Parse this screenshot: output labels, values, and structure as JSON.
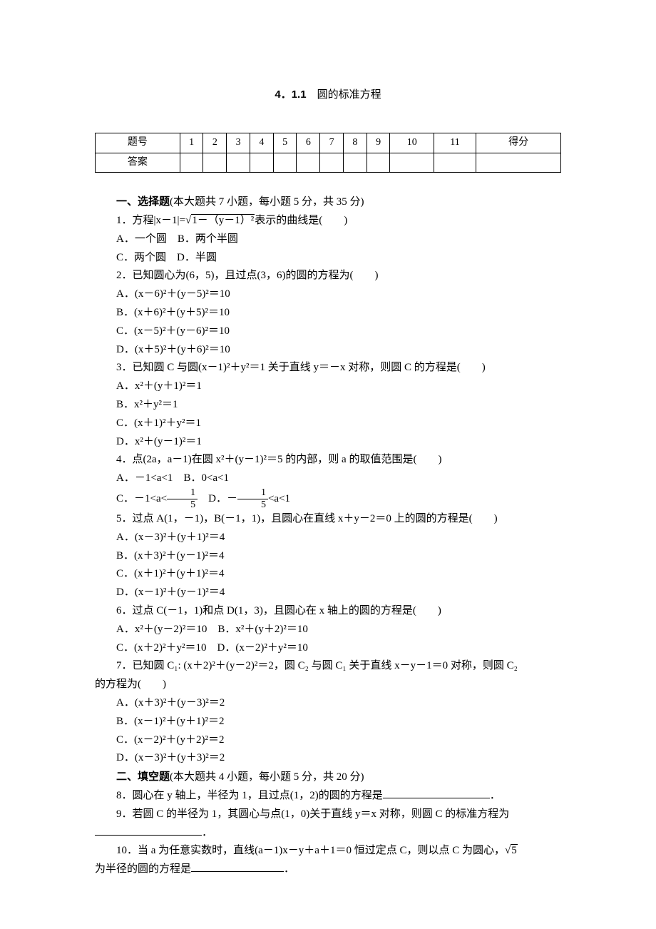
{
  "title": {
    "section_num": "4．1.1",
    "name": "圆的标准方程"
  },
  "score_table": {
    "header": [
      "题号",
      "1",
      "2",
      "3",
      "4",
      "5",
      "6",
      "7",
      "8",
      "9",
      "10",
      "11",
      "得分"
    ],
    "answer_label": "答案"
  },
  "section1": {
    "header_bold": "一、选择题",
    "header_rest": "(本大题共 7 小题，每小题 5 分，共 35 分)"
  },
  "q1": {
    "stem": "1．方程|x－1|=",
    "sqrt_content": "1－（y－1）²",
    "tail": "表示的曲线是(　　)",
    "optA": "A．一个圆",
    "optB": "B．两个半圆",
    "optC": "C．两个圆",
    "optD": "D．半圆"
  },
  "q2": {
    "stem": "2．已知圆心为(6，5)，且过点(3，6)的圆的方程为(　　)",
    "optA": "A．(x－6)²＋(y－5)²＝10",
    "optB": "B．(x＋6)²＋(y＋5)²＝10",
    "optC": "C．(x－5)²＋(y－6)²＝10",
    "optD": "D．(x＋5)²＋(y＋6)²＝10"
  },
  "q3": {
    "stem": "3．已知圆 C 与圆(x－1)²＋y²＝1 关于直线 y＝－x 对称，则圆 C 的方程是(　　)",
    "optA": "A．x²＋(y＋1)²＝1",
    "optB": "B．x²＋y²＝1",
    "optC": "C．(x＋1)²＋y²＝1",
    "optD": "D．x²＋(y－1)²＝1"
  },
  "q4": {
    "stem": "4．点(2a，a－1)在圆 x²＋(y－1)²＝5 的内部，则 a 的取值范围是(　　)",
    "optA": "A．－1<a<1",
    "optB": "B．0<a<1",
    "optC_pre": "C．－1<a<",
    "optC_num": "1",
    "optC_den": "5",
    "optD_pre": "D．－",
    "optD_num": "1",
    "optD_den": "5",
    "optD_post": "<a<1"
  },
  "q5": {
    "stem": "5．过点 A(1，－1)，B(－1，1)，且圆心在直线 x＋y－2＝0 上的圆的方程是(　　)",
    "optA": "A．(x－3)²＋(y＋1)²＝4",
    "optB": "B．(x＋3)²＋(y－1)²＝4",
    "optC": "C．(x＋1)²＋(y＋1)²＝4",
    "optD": "D．(x－1)²＋(y－1)²＝4"
  },
  "q6": {
    "stem": "6．过点 C(－1，1)和点 D(1，3)，且圆心在 x 轴上的圆的方程是(　　)",
    "optA": "A．x²＋(y－2)²＝10",
    "optB": "B．x²＋(y＋2)²＝10",
    "optC": "C．(x＋2)²＋y²＝10",
    "optD": "D．(x－2)²＋y²＝10"
  },
  "q7": {
    "stem_pre": "7．已知圆 C₁: (x＋2)²＋(y－2)²＝2，圆 C₂ 与圆 C₁ 关于直线 x－y－1＝0 对称，则圆 C₂",
    "stem_post": "的方程为(　　)",
    "optA": "A．(x＋3)²＋(y－3)²＝2",
    "optB": "B．(x－1)²＋(y＋1)²＝2",
    "optC": "C．(x－2)²＋(y＋2)²＝2",
    "optD": "D．(x－3)²＋(y＋3)²＝2"
  },
  "section2": {
    "header_bold": "二、填空题",
    "header_rest": "(本大题共 4 小题，每小题 5 分，共 20 分)"
  },
  "q8": {
    "stem": "8．圆心在 y 轴上，半径为 1，且过点(1，2)的圆的方程是"
  },
  "q9": {
    "stem": "9．若圆 C 的半径为 1，其圆心与点(1，0)关于直线 y＝x 对称，则圆 C 的标准方程为"
  },
  "q10": {
    "stem_pre": "10．当 a 为任意实数时，直线(a－1)x－y＋a＋1＝0 恒过定点 C，则以点 C 为圆心，",
    "sqrt": "5",
    "stem_post": "为半径的圆的方程是",
    "period": "．"
  }
}
